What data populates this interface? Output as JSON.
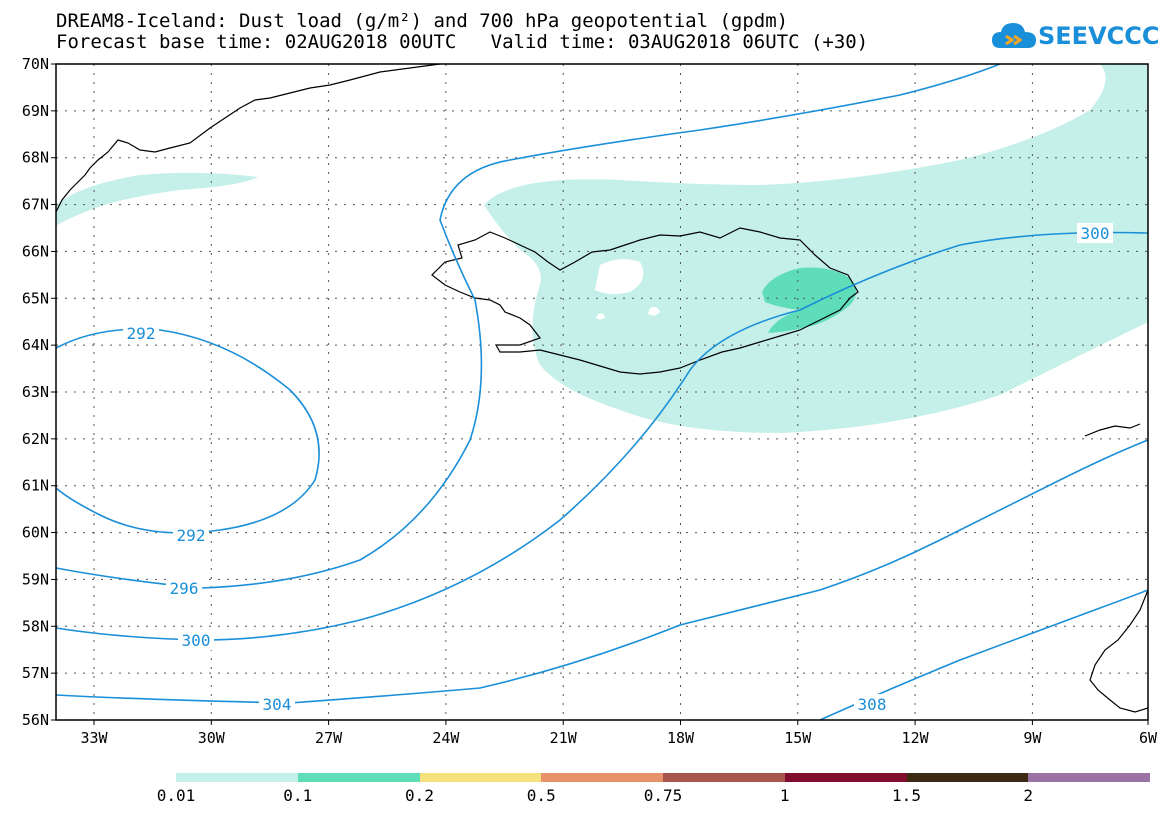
{
  "title": {
    "line1": "DREAM8-Iceland: Dust load (g/m²) and 700 hPa geopotential (gpdm)",
    "line2": "Forecast base time: 02AUG2018 00UTC   Valid time: 03AUG2018 06UTC (+30)"
  },
  "logo": {
    "text": "SEEVCCC",
    "icon": "cloud-icon"
  },
  "axes": {
    "lat_labels": [
      "70N",
      "69N",
      "68N",
      "67N",
      "66N",
      "65N",
      "64N",
      "63N",
      "62N",
      "61N",
      "60N",
      "59N",
      "58N",
      "57N",
      "56N"
    ],
    "lon_labels": [
      "33W",
      "30W",
      "27W",
      "24W",
      "21W",
      "18W",
      "15W",
      "12W",
      "9W",
      "6W"
    ]
  },
  "contours": [
    {
      "value": "292",
      "label": "292"
    },
    {
      "value": "296",
      "label": "296"
    },
    {
      "value": "300",
      "label": "300"
    },
    {
      "value": "304",
      "label": "304"
    },
    {
      "value": "308",
      "label": "308"
    }
  ],
  "contour_labels": [
    "292",
    "292",
    "296",
    "300",
    "300",
    "304",
    "308"
  ],
  "colorbar": {
    "colors": [
      "#c5f0e9",
      "#5fddb8",
      "#f5e27d",
      "#e8926b",
      "#a6564c",
      "#800d2e",
      "#3c2a12",
      "#9a72a6"
    ],
    "labels": [
      "0.01",
      "0.1",
      "0.2",
      "0.5",
      "0.75",
      "1",
      "1.5",
      "2"
    ]
  },
  "colors": {
    "contour": "#1a8fd9",
    "dust_low": "#c5f0e9",
    "dust_mid": "#5fddb8"
  }
}
